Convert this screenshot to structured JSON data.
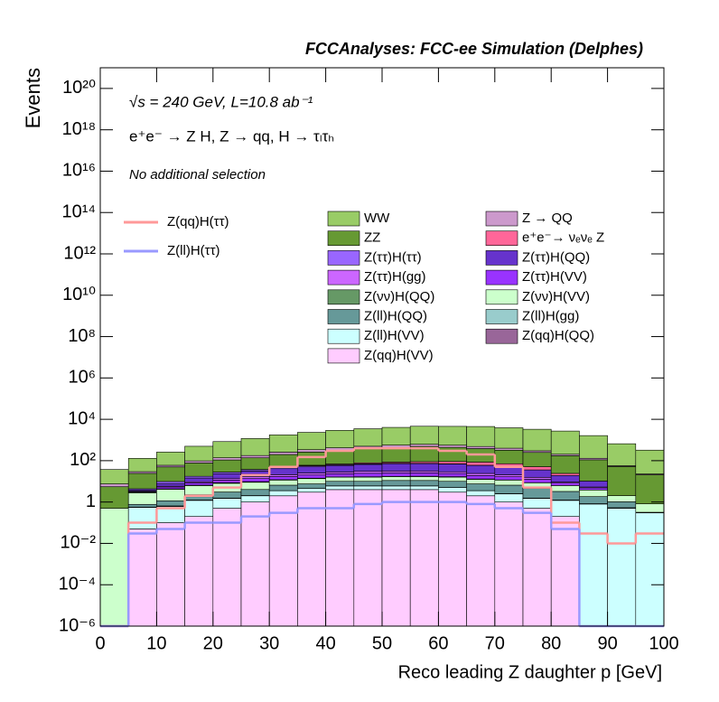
{
  "chart_data": {
    "type": "stacked_histogram",
    "title": "FCCAnalyses: FCC-ee Simulation (Delphes)",
    "annotations": [
      "√s = 240 GeV, L=10.8 ab⁻¹",
      "e⁺e⁻ → Z H, Z → qq, H → τₗτₕ",
      "No additional selection"
    ],
    "x_label": "Reco leading Z daughter p [GeV]",
    "y_label": "Events",
    "log_y": true,
    "bins": [
      0,
      5,
      10,
      15,
      20,
      25,
      30,
      35,
      40,
      45,
      50,
      55,
      60,
      65,
      70,
      75,
      80,
      85,
      90,
      95,
      100
    ],
    "xlim": [
      0,
      100
    ],
    "xticks": [
      0,
      10,
      20,
      30,
      40,
      50,
      60,
      70,
      80,
      90,
      100
    ],
    "ylim": [
      1e-06,
      1e+21
    ],
    "yticks": [
      {
        "value": 1e-06,
        "label": "10⁻⁶"
      },
      {
        "value": 0.0001,
        "label": "10⁻⁴"
      },
      {
        "value": 0.01,
        "label": "10⁻²"
      },
      1,
      {
        "value": 100,
        "label": "10²"
      },
      {
        "value": 10000.0,
        "label": "10⁴"
      },
      {
        "value": 1000000.0,
        "label": "10⁶"
      },
      {
        "value": 100000000.0,
        "label": "10⁸"
      },
      {
        "value": 10000000000.0,
        "label": "10¹⁰"
      },
      {
        "value": 1000000000000.0,
        "label": "10¹²"
      },
      {
        "value": 100000000000000.0,
        "label": "10¹⁴"
      },
      {
        "value": 1e+16,
        "label": "10¹⁶"
      },
      {
        "value": 1e+18,
        "label": "10¹⁸"
      },
      {
        "value": 1e+20,
        "label": "10²⁰"
      }
    ],
    "series": [
      {
        "name": "WW",
        "color": "#99cc66",
        "values": [
          30,
          100,
          200,
          400,
          700,
          1000,
          1500,
          2000,
          2500,
          3000,
          3500,
          4000,
          4000,
          4000,
          3500,
          3000,
          2500,
          1500,
          600,
          300
        ]
      },
      {
        "name": "Z → QQ",
        "color": "#cc99cc",
        "values": [
          2,
          5,
          10,
          20,
          30,
          40,
          60,
          80,
          100,
          120,
          130,
          130,
          120,
          100,
          80,
          50,
          30,
          20,
          5,
          2
        ]
      },
      {
        "name": "ZZ",
        "color": "#669933",
        "values": [
          5,
          20,
          40,
          60,
          80,
          100,
          150,
          200,
          250,
          300,
          350,
          400,
          350,
          300,
          250,
          200,
          150,
          100,
          50,
          20
        ]
      },
      {
        "name": "e⁺e⁻→ νₑνₑ Z",
        "color": "#ff6699",
        "values": [
          0,
          0,
          0,
          0,
          0.5,
          1,
          2,
          4,
          6,
          8,
          10,
          15,
          20,
          25,
          20,
          15,
          5,
          0,
          0,
          0
        ]
      },
      {
        "name": "Z(ττ)H(ττ)",
        "color": "#9966ff",
        "values": [
          0,
          0.5,
          2,
          3,
          4,
          5,
          6,
          6,
          5,
          5,
          4,
          3,
          2,
          1,
          0.5,
          0.2,
          0,
          0,
          0,
          0
        ]
      },
      {
        "name": "Z(ττ)H(QQ)",
        "color": "#6633cc",
        "values": [
          0,
          0.5,
          2,
          5,
          10,
          15,
          20,
          25,
          30,
          35,
          40,
          40,
          40,
          35,
          30,
          20,
          10,
          5,
          0,
          0
        ]
      },
      {
        "name": "Z(ττ)H(gg)",
        "color": "#cc66ff",
        "values": [
          0,
          0.1,
          0.5,
          1,
          2,
          3,
          4,
          5,
          5,
          6,
          6,
          6,
          5,
          5,
          4,
          3,
          1,
          0.5,
          0,
          0
        ]
      },
      {
        "name": "Z(ττ)H(VV)",
        "color": "#9933ff",
        "values": [
          0,
          0.2,
          1,
          2,
          3,
          4,
          5,
          6,
          7,
          8,
          8,
          8,
          7,
          6,
          5,
          4,
          2,
          1,
          0,
          0
        ]
      },
      {
        "name": "Z(νν)H(QQ)",
        "color": "#669966",
        "values": [
          0,
          0.3,
          0.2,
          0.3,
          0.5,
          0.6,
          0.5,
          0.7,
          0.3,
          0.6,
          0.4,
          0.6,
          0.8,
          0.5,
          0.2,
          0.1,
          0,
          0,
          0,
          0
        ]
      },
      {
        "name": "Z(νν)H(VV)",
        "color": "#ccffcc",
        "values": [
          0.5,
          2,
          3,
          4,
          5,
          5,
          5,
          6,
          6,
          6,
          6,
          6,
          6,
          5,
          5,
          4,
          3,
          2,
          1,
          0.5
        ]
      },
      {
        "name": "Z(ll)H(QQ)",
        "color": "#669999",
        "values": [
          0,
          0.2,
          0.5,
          1,
          1.5,
          2,
          3,
          3,
          4,
          4,
          5,
          5,
          5,
          4,
          4,
          3,
          2,
          1,
          0.5,
          0
        ]
      },
      {
        "name": "Z(ll)H(gg)",
        "color": "#99cccc",
        "values": [
          0,
          0.02,
          0.05,
          0.05,
          0.05,
          0.05,
          0.05,
          0.05,
          0.05,
          0.05,
          0.05,
          0.05,
          0.05,
          0.05,
          0.05,
          0.05,
          0.05,
          0.03,
          0.03,
          0.02
        ]
      },
      {
        "name": "Z(ll)H(VV)",
        "color": "#ccffff",
        "values": [
          0,
          0.5,
          0.5,
          1,
          1,
          1,
          1.5,
          1.5,
          2,
          2,
          2,
          2,
          2,
          1.5,
          1.5,
          1,
          1,
          0.8,
          0.5,
          0.3
        ]
      },
      {
        "name": "Z(qq)H(QQ)",
        "color": "#996699",
        "values": [
          0,
          0,
          0,
          0,
          0,
          0.001,
          0,
          0,
          0,
          0,
          0,
          0,
          0,
          0,
          0,
          0,
          0,
          0,
          0,
          0
        ]
      },
      {
        "name": "Z(qq)H(VV)",
        "color": "#ffccff",
        "values": [
          0,
          0.05,
          0.1,
          0.2,
          0.5,
          1,
          2,
          3,
          4,
          4,
          4,
          4,
          3,
          2,
          1,
          0.5,
          0.2,
          0,
          0,
          0
        ]
      }
    ],
    "lines": [
      {
        "name": "Z(qq)H(ττ)",
        "color": "#ff9999",
        "values": [
          0,
          0.1,
          0.5,
          2,
          5,
          20,
          50,
          150,
          300,
          400,
          400,
          400,
          300,
          200,
          50,
          5,
          0.1,
          0.03,
          0.01,
          0.03
        ]
      },
      {
        "name": "Z(ll)H(ττ)",
        "color": "#9999ff",
        "values": [
          0,
          0.03,
          0.05,
          0.1,
          0.1,
          0.2,
          0.3,
          0.5,
          0.5,
          0.8,
          1,
          1,
          1,
          0.8,
          0.5,
          0.3,
          0.05,
          0,
          0,
          0
        ]
      }
    ]
  }
}
